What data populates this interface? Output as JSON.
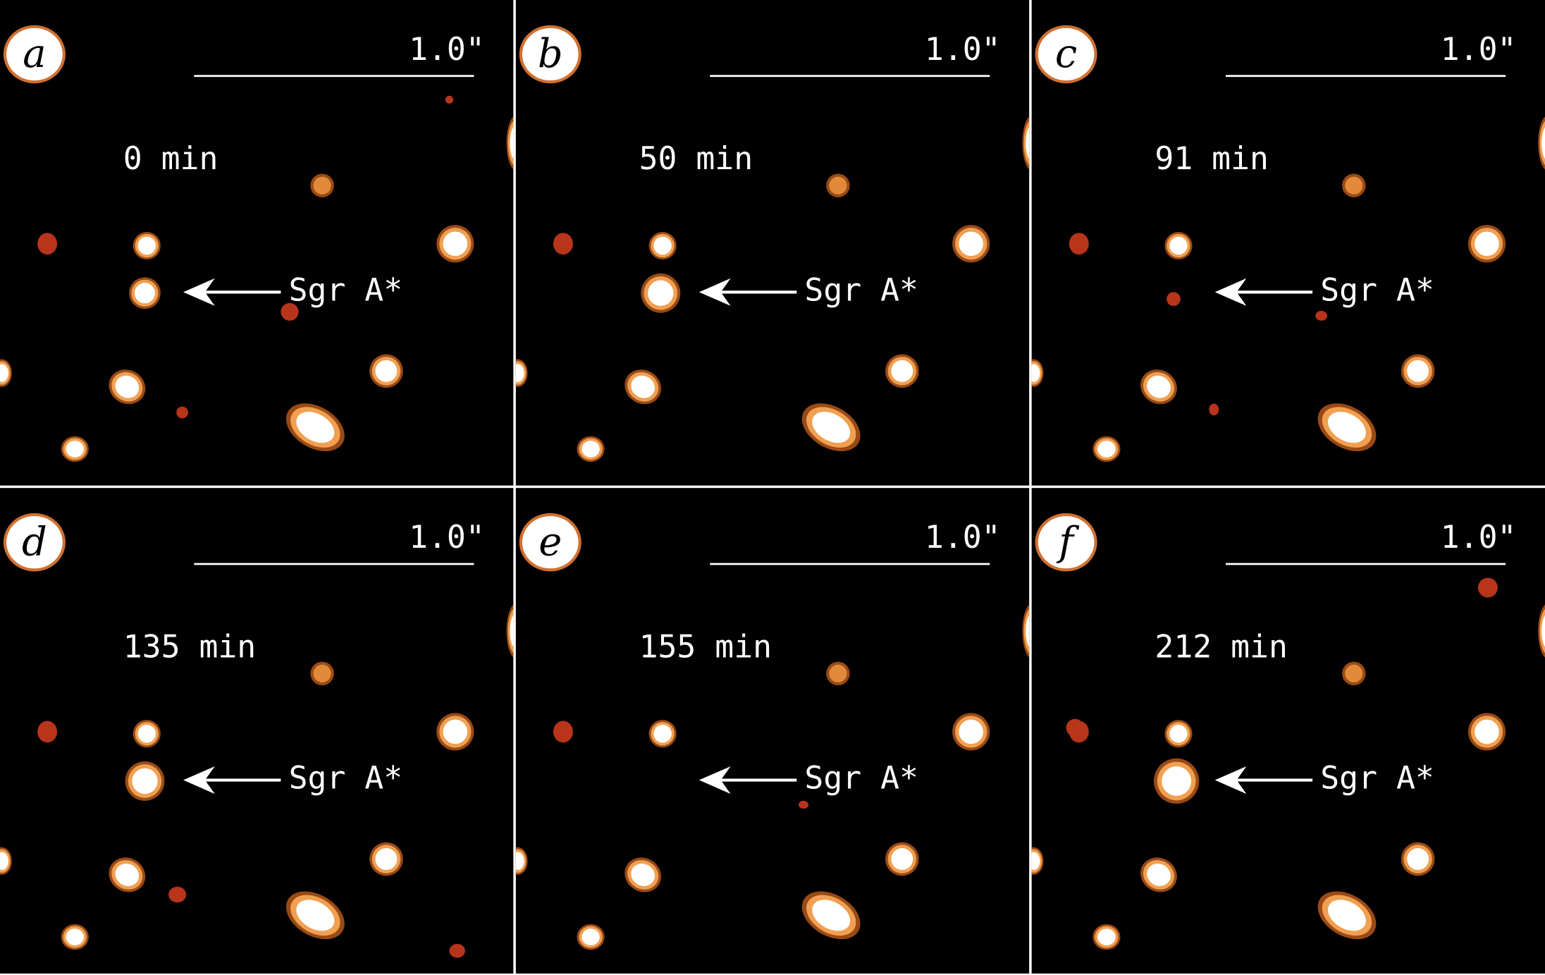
{
  "panels": [
    {
      "label": "a",
      "time": "0 min",
      "scale": "1.0\"",
      "target": "Sgr A*"
    },
    {
      "label": "b",
      "time": "50 min",
      "scale": "1.0\"",
      "target": "Sgr A*"
    },
    {
      "label": "c",
      "time": "91 min",
      "scale": "1.0\"",
      "target": "Sgr A*"
    },
    {
      "label": "d",
      "time": "135 min",
      "scale": "1.0\"",
      "target": "Sgr A*"
    },
    {
      "label": "e",
      "time": "155 min",
      "scale": "1.0\"",
      "target": "Sgr A*"
    },
    {
      "label": "f",
      "time": "212 min",
      "scale": "1.0\"",
      "target": "Sgr A*"
    }
  ]
}
